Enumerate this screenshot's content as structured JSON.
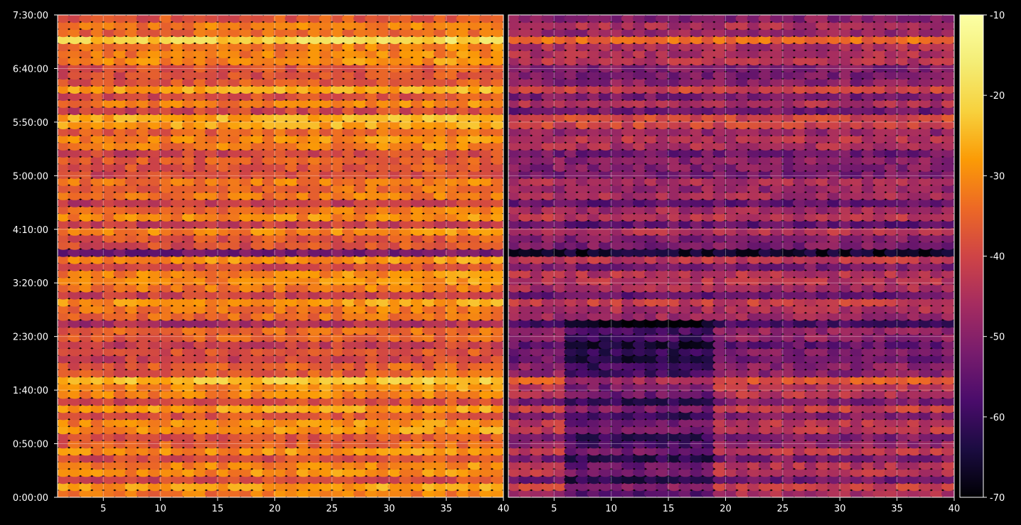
{
  "chart_data": {
    "type": "heatmap",
    "colormap": "inferno",
    "background": "#000000",
    "grid": true,
    "panels": [
      {
        "name": "",
        "x_range": [
          1,
          40
        ],
        "x_ticks": [
          5,
          10,
          15,
          20,
          25,
          30,
          35,
          40
        ],
        "y_range_seconds": [
          0,
          27000
        ],
        "intensity_profile": "bright",
        "mean_level": -36
      },
      {
        "name": "",
        "x_range": [
          1,
          40
        ],
        "x_ticks": [
          5,
          10,
          15,
          20,
          25,
          30,
          35,
          40
        ],
        "y_range_seconds": [
          0,
          27000
        ],
        "intensity_profile": "dark",
        "mean_level": -48
      }
    ],
    "y_ticks": [
      "0:00:00",
      "0:50:00",
      "1:40:00",
      "2:30:00",
      "3:20:00",
      "4:10:00",
      "5:00:00",
      "5:50:00",
      "6:40:00",
      "7:30:00"
    ],
    "colorbar": {
      "min": -70,
      "max": -10,
      "ticks": [
        "-10",
        "-20",
        "-30",
        "-40",
        "-50",
        "-60",
        "-70"
      ]
    }
  },
  "labels": {
    "xticks_left": [
      "5",
      "10",
      "15",
      "20",
      "25",
      "30",
      "35",
      "40"
    ],
    "xticks_right": [
      "5",
      "10",
      "15",
      "20",
      "25",
      "30",
      "35",
      "40"
    ]
  }
}
